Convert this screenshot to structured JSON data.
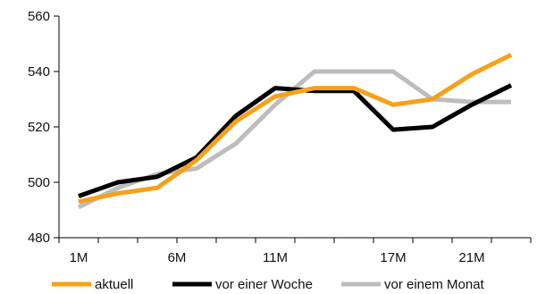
{
  "chart_data": {
    "type": "line",
    "title": "",
    "xlabel": "",
    "ylabel": "",
    "x_tick_labels": [
      "1M",
      "6M",
      "11M",
      "17M",
      "21M"
    ],
    "x_tick_positions": [
      1,
      6,
      11,
      17,
      21
    ],
    "x": [
      1,
      3,
      5,
      7,
      9,
      11,
      13,
      15,
      17,
      19,
      21,
      23
    ],
    "xlim": [
      0,
      24
    ],
    "ylim": [
      480,
      560
    ],
    "yticks": [
      480,
      500,
      520,
      540,
      560
    ],
    "grid": false,
    "legend": "bottom",
    "series": [
      {
        "name": "aktuell",
        "color": "#f5a11a",
        "values": [
          493,
          496,
          498,
          508,
          522,
          531,
          534,
          534,
          528,
          530,
          539,
          546
        ]
      },
      {
        "name": "vor einer Woche",
        "color": "#000000",
        "values": [
          495,
          500,
          502,
          509,
          524,
          534,
          533,
          533,
          519,
          520,
          528,
          535
        ]
      },
      {
        "name": "vor einem Monat",
        "color": "#bdbdbd",
        "values": [
          491,
          498,
          503,
          505,
          514,
          528,
          540,
          540,
          540,
          530,
          529,
          529
        ]
      }
    ]
  }
}
